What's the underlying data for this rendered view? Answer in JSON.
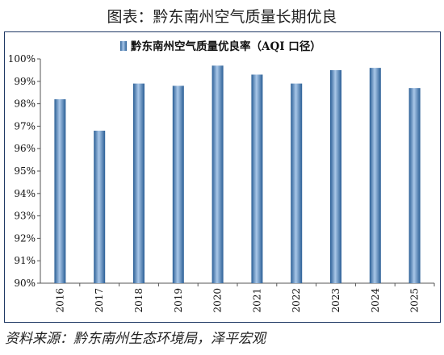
{
  "page_title": "图表：黔东南州空气质量长期优良",
  "source": "资料来源：黔东南州生态环境局，泽平宏观",
  "chart_data": {
    "type": "bar",
    "title": "",
    "xlabel": "",
    "ylabel": "",
    "ylim": [
      90,
      100
    ],
    "grid": false,
    "legend": "top-center",
    "categories": [
      "2016",
      "2017",
      "2018",
      "2019",
      "2020",
      "2021",
      "2022",
      "2023",
      "2024",
      "2025"
    ],
    "series": [
      {
        "name": "黔东南州空气质量优良率（AQI 口径）",
        "values": [
          98.2,
          96.8,
          98.9,
          98.8,
          99.7,
          99.3,
          98.9,
          99.5,
          99.6,
          98.7
        ]
      }
    ],
    "yticks": [
      "90%",
      "91%",
      "92%",
      "93%",
      "94%",
      "95%",
      "96%",
      "97%",
      "98%",
      "99%",
      "100%"
    ],
    "colors": {
      "bar_dark": "#2b5f96",
      "bar_light": "#a9c7e8",
      "axis": "#555555"
    }
  }
}
